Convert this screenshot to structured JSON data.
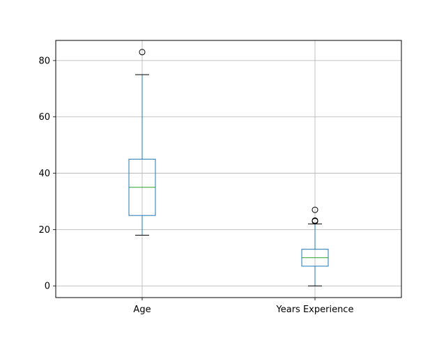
{
  "chart_data": {
    "type": "boxplot",
    "categories": [
      "Age",
      "Years Experience"
    ],
    "boxes": [
      {
        "label": "Age",
        "whisker_low": 18,
        "q1": 25,
        "median": 35,
        "q3": 45,
        "whisker_high": 75,
        "outliers": [
          83
        ]
      },
      {
        "label": "Years Experience",
        "whisker_low": 0,
        "q1": 7,
        "median": 10,
        "q3": 13,
        "whisker_high": 22,
        "outliers": [
          23,
          23,
          23.2,
          27
        ]
      }
    ],
    "ylim": [
      -4.15,
      87.15
    ],
    "yticks": [
      0,
      20,
      40,
      60,
      80
    ],
    "ytick_labels": [
      "0",
      "20",
      "40",
      "60",
      "80"
    ],
    "grid": true,
    "colors": {
      "box": "#1f77b4",
      "median": "#2ca02c",
      "whisker_cap": "#000000",
      "outlier": "#000000",
      "grid": "#b0b0b0",
      "axes": "#000000"
    }
  }
}
